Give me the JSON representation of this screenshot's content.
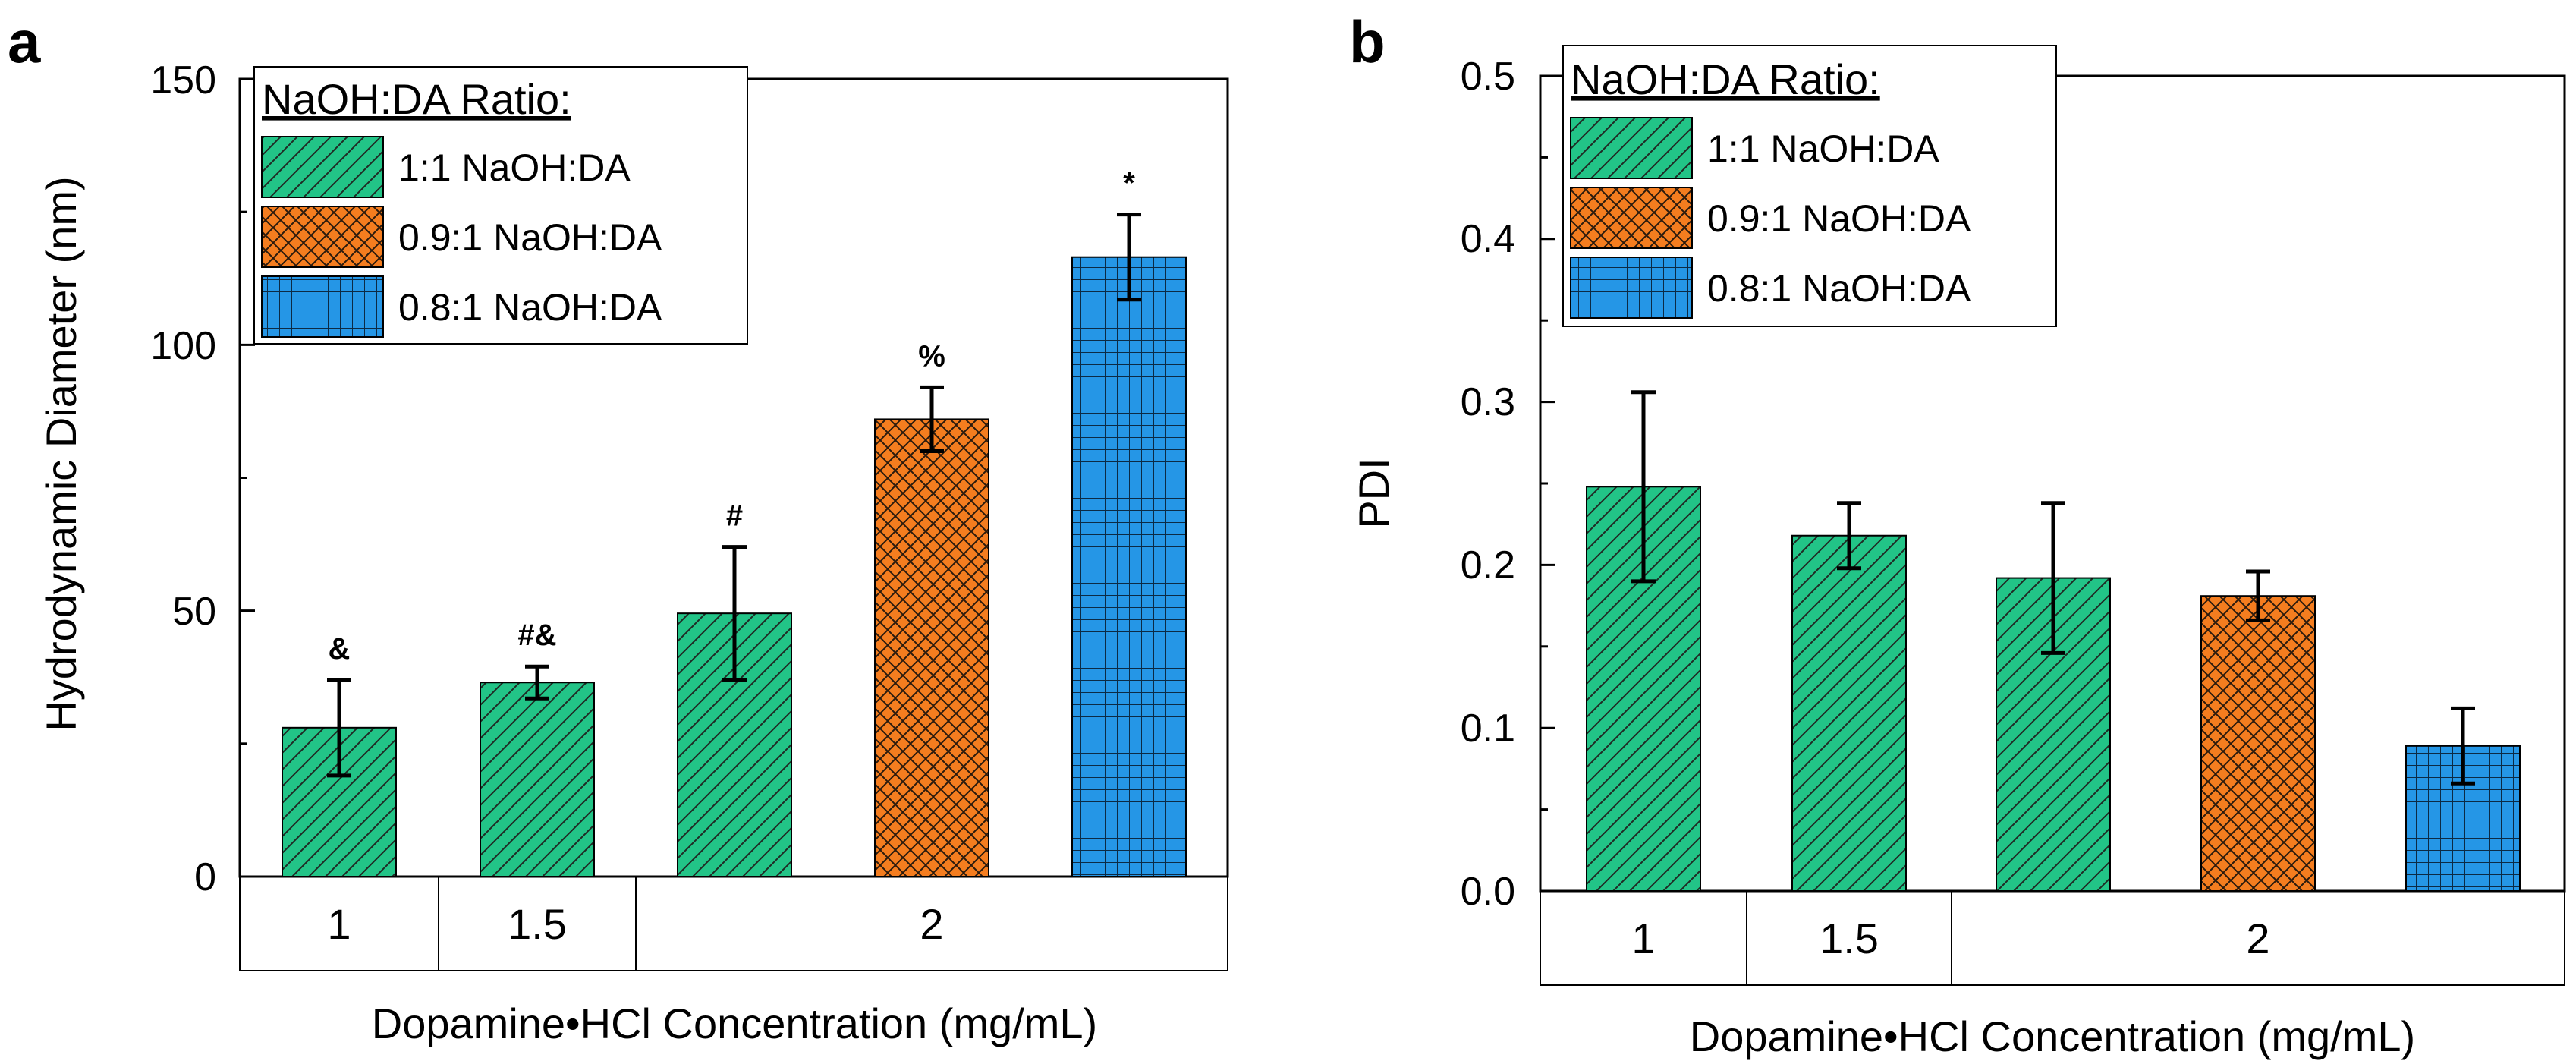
{
  "chart_data": [
    {
      "panel": "a",
      "type": "bar",
      "ylabel": "Hydrodynamic Diameter (nm)",
      "xlabel": "Dopamine•HCl Concentration (mg/mL)",
      "ylim": [
        0,
        150
      ],
      "yticks": [
        "0",
        "50",
        "100",
        "150"
      ],
      "legend_title": "NaOH:DA Ratio:",
      "legend": [
        {
          "name": "1:1 NaOH:DA",
          "key": "r1",
          "color": "#22C487",
          "pattern": "diagonal"
        },
        {
          "name": "0.9:1 NaOH:DA",
          "key": "r09",
          "color": "#F47D1F",
          "pattern": "crosshatch"
        },
        {
          "name": "0.8:1 NaOH:DA",
          "key": "r08",
          "color": "#2596E6",
          "pattern": "grid"
        }
      ],
      "groups": [
        {
          "label": "1",
          "span": 1
        },
        {
          "label": "1.5",
          "span": 1
        },
        {
          "label": "2",
          "span": 3
        }
      ],
      "bars": [
        {
          "concentration": "1",
          "series": "r1",
          "value": 28,
          "error": 9,
          "annotation": "&"
        },
        {
          "concentration": "1.5",
          "series": "r1",
          "value": 36.5,
          "error": 3,
          "annotation": "#&"
        },
        {
          "concentration": "2",
          "series": "r1",
          "value": 49.5,
          "error": 12.5,
          "annotation": "#"
        },
        {
          "concentration": "2",
          "series": "r09",
          "value": 86,
          "error": 6,
          "annotation": "%"
        },
        {
          "concentration": "2",
          "series": "r08",
          "value": 116.5,
          "error": 8,
          "annotation": "*"
        }
      ]
    },
    {
      "panel": "b",
      "type": "bar",
      "ylabel": "PDI",
      "xlabel": "Dopamine•HCl Concentration (mg/mL)",
      "ylim": [
        0,
        0.5
      ],
      "yticks": [
        "0.0",
        "0.1",
        "0.2",
        "0.3",
        "0.4",
        "0.5"
      ],
      "legend_title": "NaOH:DA Ratio:",
      "legend": [
        {
          "name": "1:1 NaOH:DA",
          "key": "r1",
          "color": "#22C487",
          "pattern": "diagonal"
        },
        {
          "name": "0.9:1 NaOH:DA",
          "key": "r09",
          "color": "#F47D1F",
          "pattern": "crosshatch"
        },
        {
          "name": "0.8:1 NaOH:DA",
          "key": "r08",
          "color": "#2596E6",
          "pattern": "grid"
        }
      ],
      "groups": [
        {
          "label": "1",
          "span": 1
        },
        {
          "label": "1.5",
          "span": 1
        },
        {
          "label": "2",
          "span": 3
        }
      ],
      "bars": [
        {
          "concentration": "1",
          "series": "r1",
          "value": 0.248,
          "error": 0.058,
          "annotation": ""
        },
        {
          "concentration": "1.5",
          "series": "r1",
          "value": 0.218,
          "error": 0.02,
          "annotation": ""
        },
        {
          "concentration": "2",
          "series": "r1",
          "value": 0.192,
          "error": 0.046,
          "annotation": ""
        },
        {
          "concentration": "2",
          "series": "r09",
          "value": 0.181,
          "error": 0.015,
          "annotation": ""
        },
        {
          "concentration": "2",
          "series": "r08",
          "value": 0.089,
          "error": 0.023,
          "annotation": ""
        }
      ]
    }
  ]
}
